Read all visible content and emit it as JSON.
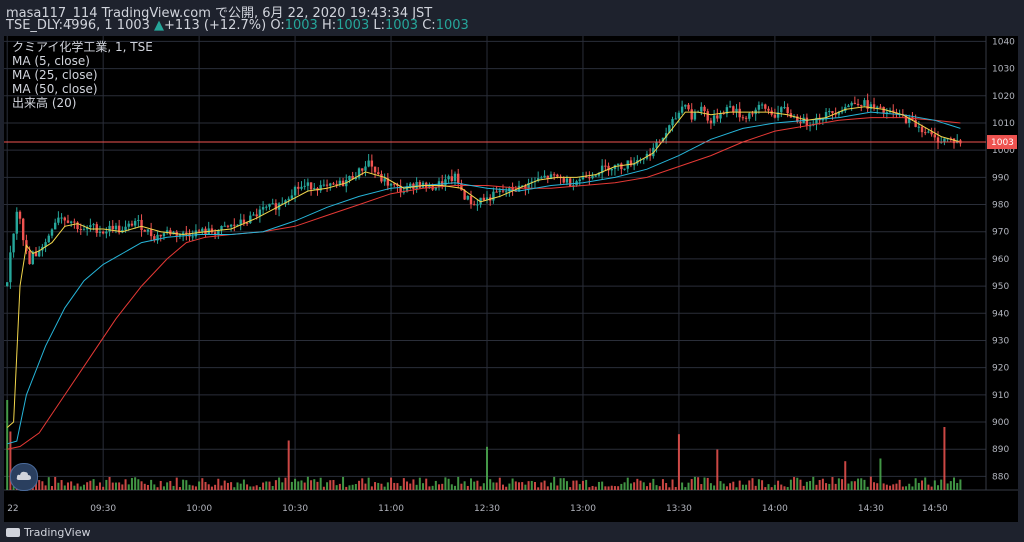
{
  "header": {
    "line1": "masa117_114 TradingView.com で公開, 6月 22, 2020 19:43:34 JST",
    "symbol": "TSE_DLY:4996, 1",
    "last": "1003",
    "arrow": "▲",
    "change": "+113 (+12.7%)",
    "o_label": "O:",
    "o_val": "1003",
    "h_label": "H:",
    "h_val": "1003",
    "l_label": "L:",
    "l_val": "1003",
    "c_label": "C:",
    "c_val": "1003"
  },
  "legend": {
    "title": "クミアイ化学工業, 1, TSE",
    "ma5": "MA (5, close)",
    "ma25": "MA (25, close)",
    "ma50": "MA (50, close)",
    "volume": "出来高 (20)"
  },
  "brand": {
    "label": "TradingView"
  },
  "chart_data": {
    "type": "candlestick",
    "ylim": [
      875,
      1042
    ],
    "y_ticks": [
      880,
      890,
      900,
      910,
      920,
      930,
      940,
      950,
      960,
      970,
      980,
      990,
      1000,
      1010,
      1020,
      1030,
      1040
    ],
    "price_line": 1003,
    "price_label": "1003",
    "x_ticks": [
      {
        "label": "22",
        "t": 0
      },
      {
        "label": "09:30",
        "t": 30
      },
      {
        "label": "10:00",
        "t": 60
      },
      {
        "label": "10:30",
        "t": 90
      },
      {
        "label": "11:00",
        "t": 120
      },
      {
        "label": "12:30",
        "t": 150
      },
      {
        "label": "13:00",
        "t": 180
      },
      {
        "label": "13:30",
        "t": 210
      },
      {
        "label": "14:00",
        "t": 240
      },
      {
        "label": "14:30",
        "t": 270
      },
      {
        "label": "14:50",
        "t": 290
      }
    ],
    "colors": {
      "up": "#26a69a",
      "down": "#ef5350",
      "ma5": "#f2d64b",
      "ma25": "#26b5d9",
      "ma50": "#e53935",
      "vol_up": "#4caf50",
      "vol_down": "#ef5350"
    },
    "price_path": [
      [
        0,
        950
      ],
      [
        1,
        962
      ],
      [
        2,
        970
      ],
      [
        3,
        978
      ],
      [
        4,
        976
      ],
      [
        5,
        968
      ],
      [
        6,
        962
      ],
      [
        7,
        958
      ],
      [
        8,
        962
      ],
      [
        9,
        960
      ],
      [
        10,
        964
      ],
      [
        12,
        966
      ],
      [
        14,
        972
      ],
      [
        16,
        976
      ],
      [
        18,
        975
      ],
      [
        20,
        974
      ],
      [
        22,
        972
      ],
      [
        24,
        970
      ],
      [
        26,
        972
      ],
      [
        28,
        971
      ],
      [
        30,
        970
      ],
      [
        33,
        972
      ],
      [
        36,
        970
      ],
      [
        40,
        974
      ],
      [
        43,
        971
      ],
      [
        46,
        968
      ],
      [
        50,
        970
      ],
      [
        55,
        969
      ],
      [
        60,
        970
      ],
      [
        65,
        970
      ],
      [
        70,
        972
      ],
      [
        75,
        974
      ],
      [
        80,
        978
      ],
      [
        85,
        980
      ],
      [
        90,
        986
      ],
      [
        95,
        987
      ],
      [
        100,
        986
      ],
      [
        105,
        988
      ],
      [
        110,
        992
      ],
      [
        113,
        996
      ],
      [
        116,
        990
      ],
      [
        120,
        987
      ],
      [
        124,
        985
      ],
      [
        128,
        988
      ],
      [
        132,
        986
      ],
      [
        136,
        988
      ],
      [
        140,
        990
      ],
      [
        143,
        983
      ],
      [
        146,
        980
      ],
      [
        148,
        982
      ],
      [
        150,
        982
      ],
      [
        153,
        984
      ],
      [
        156,
        985
      ],
      [
        160,
        986
      ],
      [
        164,
        988
      ],
      [
        168,
        990
      ],
      [
        172,
        990
      ],
      [
        176,
        988
      ],
      [
        180,
        990
      ],
      [
        184,
        992
      ],
      [
        188,
        994
      ],
      [
        192,
        994
      ],
      [
        196,
        996
      ],
      [
        200,
        998
      ],
      [
        204,
        1003
      ],
      [
        208,
        1010
      ],
      [
        210,
        1014
      ],
      [
        212,
        1018
      ],
      [
        214,
        1012
      ],
      [
        217,
        1016
      ],
      [
        220,
        1010
      ],
      [
        223,
        1014
      ],
      [
        226,
        1016
      ],
      [
        230,
        1012
      ],
      [
        233,
        1014
      ],
      [
        236,
        1016
      ],
      [
        240,
        1013
      ],
      [
        243,
        1015
      ],
      [
        246,
        1012
      ],
      [
        250,
        1010
      ],
      [
        254,
        1012
      ],
      [
        258,
        1014
      ],
      [
        262,
        1016
      ],
      [
        266,
        1018
      ],
      [
        270,
        1016
      ],
      [
        274,
        1014
      ],
      [
        278,
        1013
      ],
      [
        282,
        1011
      ],
      [
        286,
        1008
      ],
      [
        290,
        1004
      ],
      [
        294,
        1004
      ],
      [
        298,
        1003
      ]
    ],
    "ma5": [
      [
        0,
        898
      ],
      [
        2,
        900
      ],
      [
        4,
        950
      ],
      [
        6,
        965
      ],
      [
        8,
        962
      ],
      [
        10,
        963
      ],
      [
        14,
        966
      ],
      [
        18,
        972
      ],
      [
        22,
        973
      ],
      [
        26,
        971
      ],
      [
        30,
        971
      ],
      [
        36,
        970
      ],
      [
        42,
        972
      ],
      [
        48,
        970
      ],
      [
        55,
        969
      ],
      [
        62,
        970
      ],
      [
        70,
        971
      ],
      [
        78,
        975
      ],
      [
        86,
        980
      ],
      [
        94,
        985
      ],
      [
        100,
        986
      ],
      [
        106,
        988
      ],
      [
        112,
        992
      ],
      [
        118,
        990
      ],
      [
        124,
        986
      ],
      [
        130,
        987
      ],
      [
        136,
        987
      ],
      [
        142,
        986
      ],
      [
        148,
        981
      ],
      [
        154,
        983
      ],
      [
        160,
        986
      ],
      [
        166,
        989
      ],
      [
        172,
        990
      ],
      [
        178,
        990
      ],
      [
        184,
        991
      ],
      [
        190,
        994
      ],
      [
        196,
        995
      ],
      [
        202,
        999
      ],
      [
        208,
        1008
      ],
      [
        212,
        1014
      ],
      [
        216,
        1014
      ],
      [
        220,
        1013
      ],
      [
        226,
        1014
      ],
      [
        232,
        1014
      ],
      [
        238,
        1014
      ],
      [
        244,
        1013
      ],
      [
        250,
        1011
      ],
      [
        256,
        1012
      ],
      [
        262,
        1015
      ],
      [
        268,
        1016
      ],
      [
        274,
        1015
      ],
      [
        280,
        1013
      ],
      [
        286,
        1009
      ],
      [
        292,
        1005
      ],
      [
        298,
        1003
      ]
    ],
    "ma25": [
      [
        0,
        892
      ],
      [
        3,
        893
      ],
      [
        6,
        910
      ],
      [
        12,
        928
      ],
      [
        18,
        942
      ],
      [
        24,
        952
      ],
      [
        30,
        958
      ],
      [
        36,
        962
      ],
      [
        42,
        966
      ],
      [
        50,
        968
      ],
      [
        60,
        969
      ],
      [
        70,
        969
      ],
      [
        80,
        970
      ],
      [
        90,
        974
      ],
      [
        100,
        979
      ],
      [
        110,
        983
      ],
      [
        120,
        986
      ],
      [
        130,
        987
      ],
      [
        140,
        988
      ],
      [
        150,
        986
      ],
      [
        160,
        985
      ],
      [
        170,
        987
      ],
      [
        180,
        988
      ],
      [
        190,
        990
      ],
      [
        200,
        993
      ],
      [
        210,
        998
      ],
      [
        220,
        1004
      ],
      [
        230,
        1008
      ],
      [
        240,
        1010
      ],
      [
        250,
        1011
      ],
      [
        260,
        1012
      ],
      [
        270,
        1014
      ],
      [
        280,
        1013
      ],
      [
        290,
        1011
      ],
      [
        298,
        1008
      ]
    ],
    "ma50": [
      [
        0,
        890
      ],
      [
        4,
        891
      ],
      [
        10,
        896
      ],
      [
        18,
        910
      ],
      [
        26,
        924
      ],
      [
        34,
        938
      ],
      [
        42,
        950
      ],
      [
        50,
        960
      ],
      [
        56,
        966
      ],
      [
        62,
        968
      ],
      [
        70,
        969
      ],
      [
        80,
        970
      ],
      [
        90,
        972
      ],
      [
        100,
        976
      ],
      [
        110,
        980
      ],
      [
        120,
        984
      ],
      [
        130,
        986
      ],
      [
        140,
        987
      ],
      [
        150,
        987
      ],
      [
        160,
        986
      ],
      [
        170,
        986
      ],
      [
        180,
        987
      ],
      [
        190,
        988
      ],
      [
        200,
        990
      ],
      [
        210,
        994
      ],
      [
        220,
        998
      ],
      [
        230,
        1003
      ],
      [
        240,
        1007
      ],
      [
        250,
        1009
      ],
      [
        260,
        1011
      ],
      [
        270,
        1012
      ],
      [
        280,
        1012
      ],
      [
        290,
        1011
      ],
      [
        298,
        1010
      ]
    ],
    "volume_spikes": [
      {
        "t": 0,
        "v": 1.0,
        "up": true
      },
      {
        "t": 1,
        "v": 0.65,
        "up": false
      },
      {
        "t": 88,
        "v": 0.55,
        "up": false
      },
      {
        "t": 150,
        "v": 0.48,
        "up": true
      },
      {
        "t": 210,
        "v": 0.62,
        "up": false
      },
      {
        "t": 222,
        "v": 0.45,
        "up": false
      },
      {
        "t": 262,
        "v": 0.32,
        "up": false
      },
      {
        "t": 273,
        "v": 0.35,
        "up": true
      },
      {
        "t": 293,
        "v": 0.7,
        "up": false
      }
    ]
  }
}
